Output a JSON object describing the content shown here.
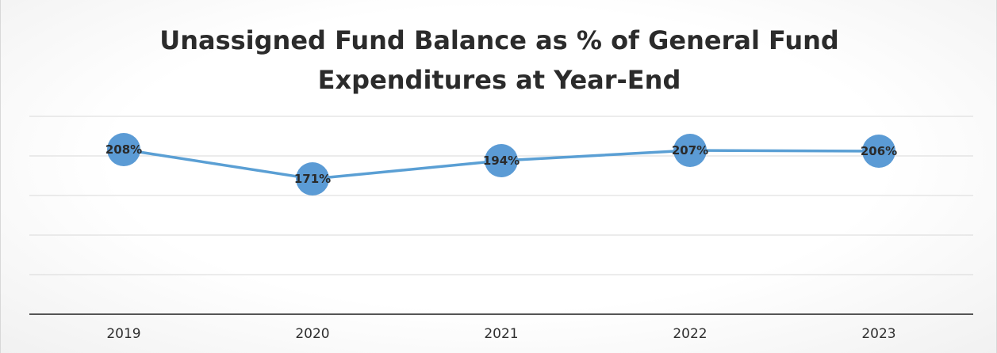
{
  "chart_data": {
    "type": "line",
    "title_line1": "Unassigned Fund Balance as % of General Fund",
    "title_line2": "Expenditures at Year-End",
    "categories": [
      "2019",
      "2020",
      "2021",
      "2022",
      "2023"
    ],
    "values": [
      208,
      171,
      194,
      207,
      206
    ],
    "data_labels": [
      "208%",
      "171%",
      "194%",
      "207%",
      "206%"
    ],
    "ylim": [
      0,
      250
    ],
    "grid": true,
    "legend": "none",
    "colors": {
      "line": "#5a9fd4",
      "marker": "#5b9bd5",
      "grid": "#d9d9d9",
      "axis": "#555555",
      "title": "#2b2b2b"
    }
  }
}
